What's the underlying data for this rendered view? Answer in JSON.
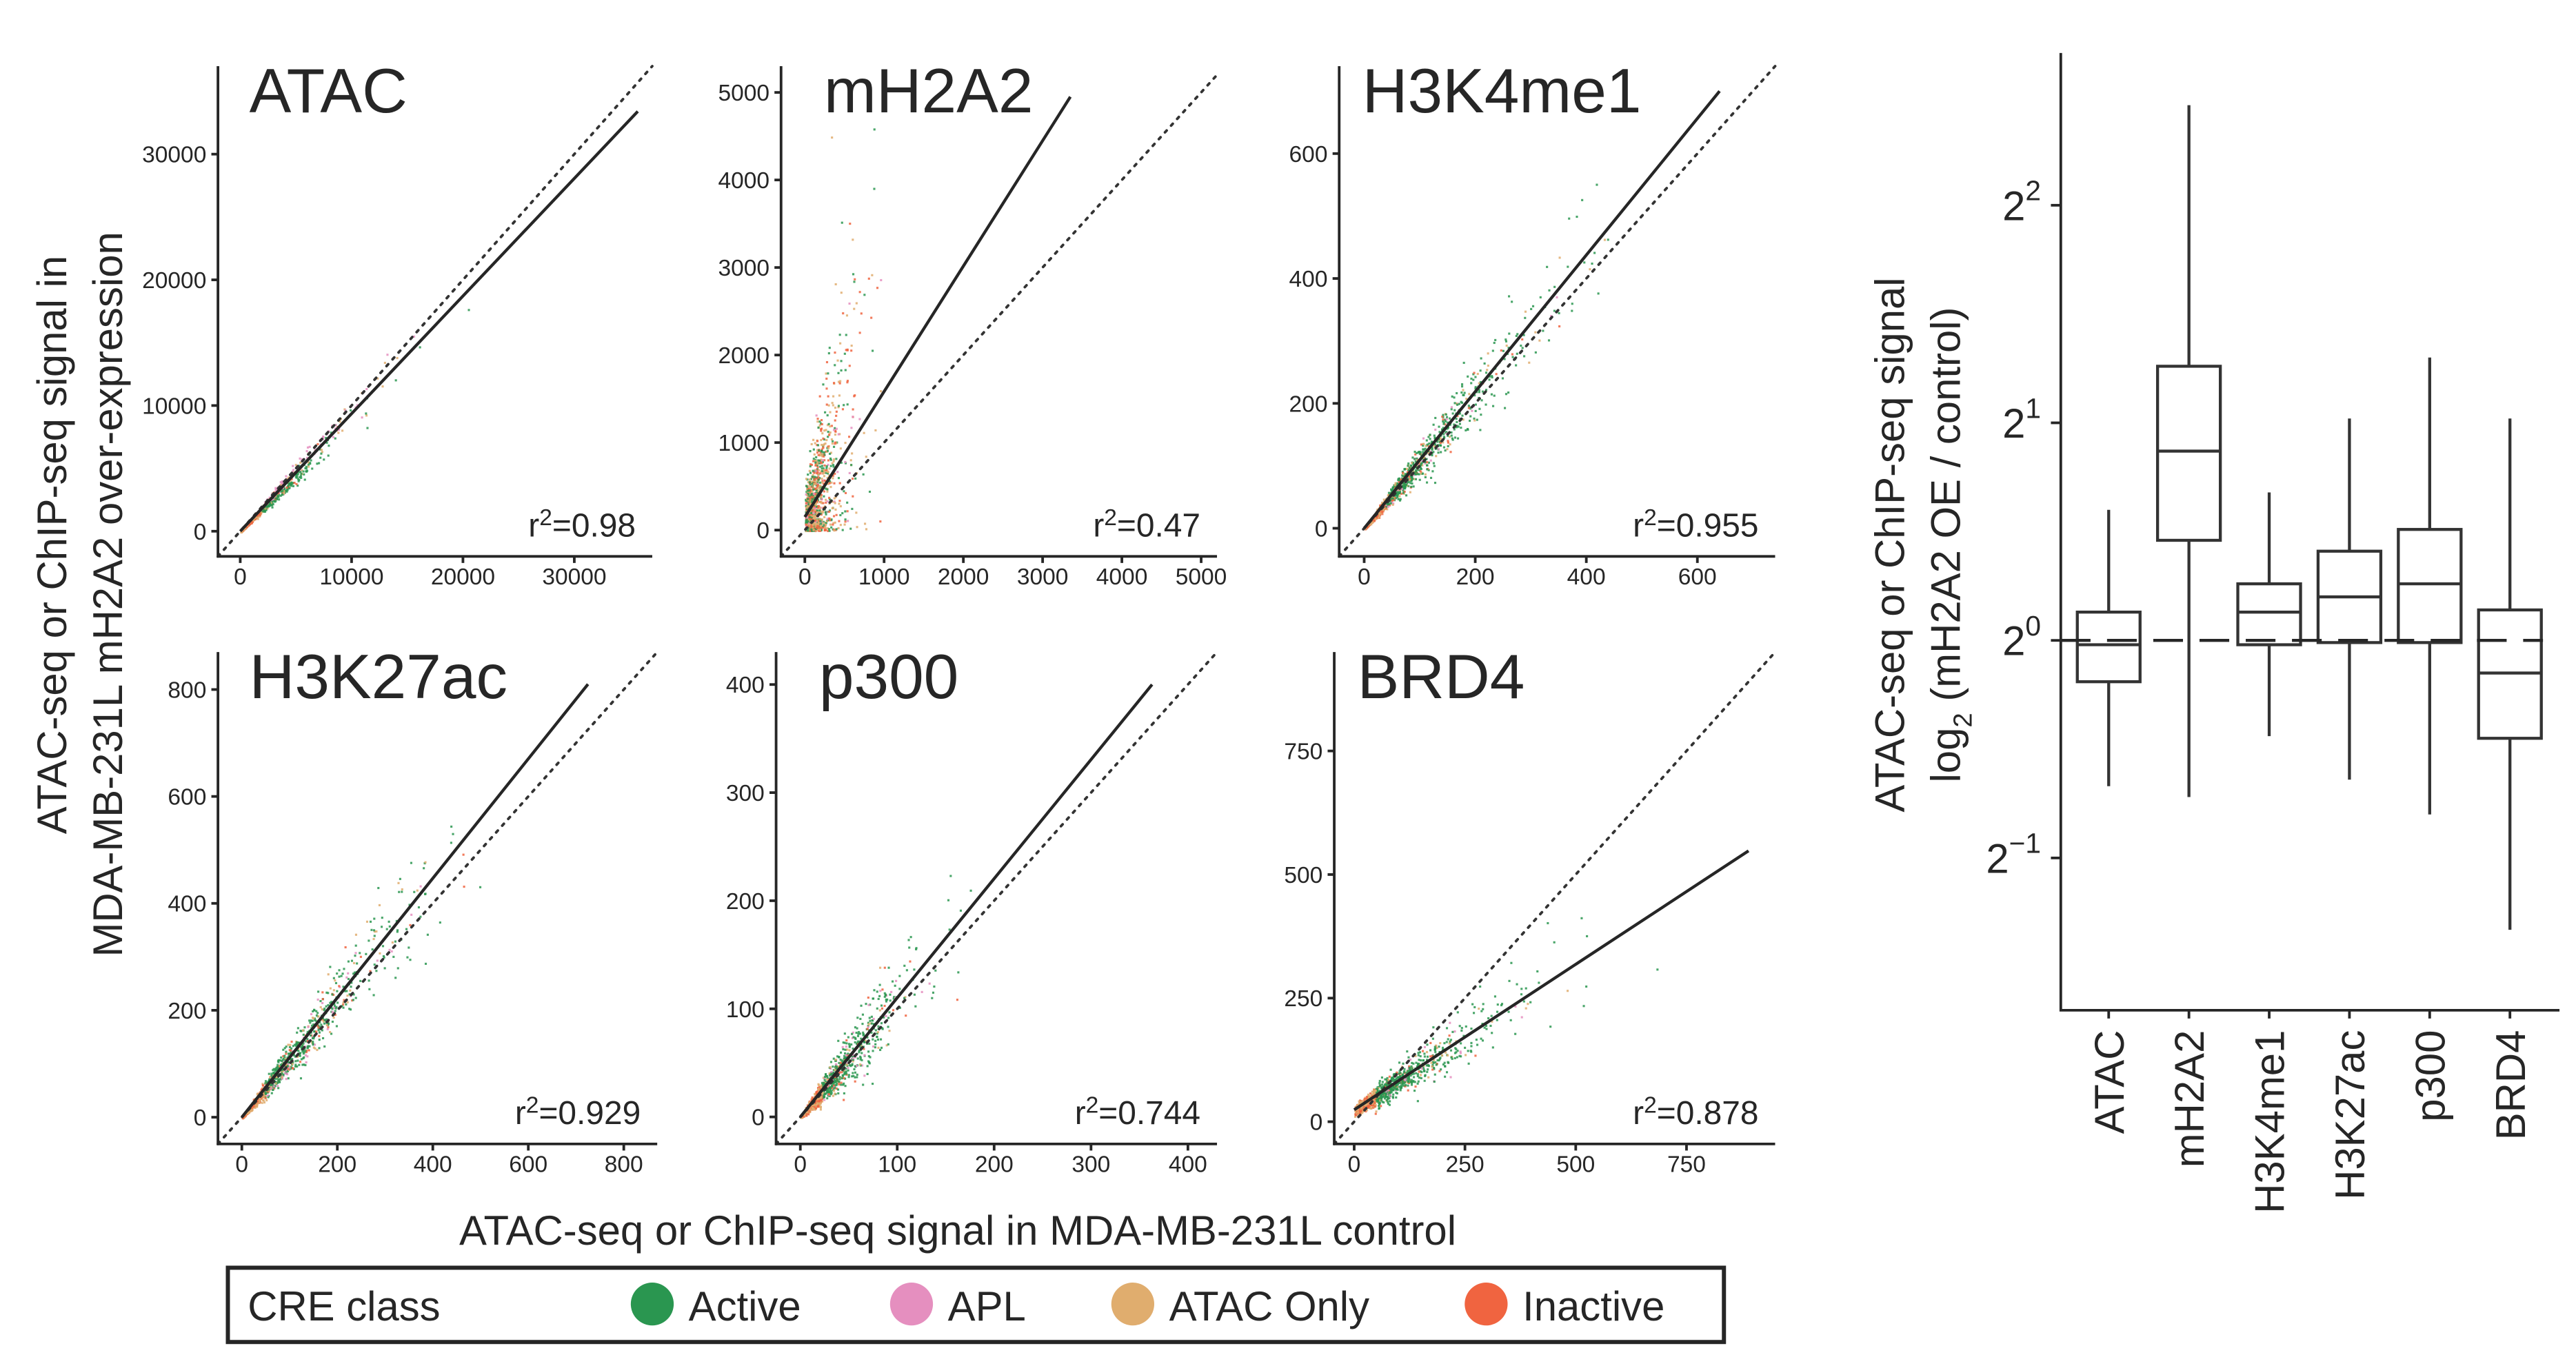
{
  "figure": {
    "scatter_ylabel_line1": "ATAC-seq or ChIP-seq signal in",
    "scatter_ylabel_line2": "MDA-MB-231L mH2A2 over-expression",
    "scatter_xlabel": "ATAC-seq or ChIP-seq signal in MDA-MB-231L control"
  },
  "legend": {
    "title": "CRE class",
    "items": [
      {
        "label": "Active",
        "color": "#2a9650"
      },
      {
        "label": "APL",
        "color": "#e58fbf"
      },
      {
        "label": "ATAC Only",
        "color": "#e0ad6e"
      },
      {
        "label": "Inactive",
        "color": "#f06440"
      }
    ]
  },
  "chart_data": [
    {
      "type": "scatter",
      "title": "ATAC",
      "r2_label": "r",
      "r2_sup": "2",
      "r2_value": "=0.98",
      "xticks": [
        0,
        10000,
        20000,
        30000
      ],
      "yticks": [
        0,
        10000,
        20000,
        30000
      ],
      "xlim": [
        -2000,
        37000
      ],
      "ylim": [
        -2000,
        37000
      ],
      "fit_line": [
        [
          0,
          0
        ],
        [
          35700,
          33400
        ]
      ],
      "identity_line": true
    },
    {
      "type": "scatter",
      "title": "mH2A2",
      "r2_label": "r",
      "r2_sup": "2",
      "r2_value": "=0.47",
      "xticks": [
        0,
        1000,
        2000,
        3000,
        4000,
        5000
      ],
      "yticks": [
        0,
        1000,
        2000,
        3000,
        4000,
        5000
      ],
      "xlim": [
        -300,
        5200
      ],
      "ylim": [
        -300,
        5300
      ],
      "fit_line": [
        [
          0,
          150
        ],
        [
          3350,
          4950
        ]
      ],
      "identity_line": true
    },
    {
      "type": "scatter",
      "title": "H3K4me1",
      "r2_label": "r",
      "r2_sup": "2",
      "r2_value": "=0.955",
      "xticks": [
        0,
        200,
        400,
        600
      ],
      "yticks": [
        0,
        200,
        400,
        600
      ],
      "xlim": [
        -45,
        740
      ],
      "ylim": [
        -45,
        740
      ],
      "fit_line": [
        [
          0,
          0
        ],
        [
          640,
          700
        ]
      ],
      "identity_line": true
    },
    {
      "type": "scatter",
      "title": "H3K27ac",
      "r2_label": "r",
      "r2_sup": "2",
      "r2_value": "=0.929",
      "xticks": [
        0,
        200,
        400,
        600,
        800
      ],
      "yticks": [
        0,
        200,
        400,
        600,
        800
      ],
      "xlim": [
        -50,
        870
      ],
      "ylim": [
        -50,
        870
      ],
      "fit_line": [
        [
          0,
          0
        ],
        [
          725,
          810
        ]
      ],
      "identity_line": true
    },
    {
      "type": "scatter",
      "title": "p300",
      "r2_label": "r",
      "r2_sup": "2",
      "r2_value": "=0.744",
      "xticks": [
        0,
        100,
        200,
        300,
        400
      ],
      "yticks": [
        0,
        100,
        200,
        300,
        400
      ],
      "xlim": [
        -25,
        430
      ],
      "ylim": [
        -25,
        430
      ],
      "fit_line": [
        [
          0,
          0
        ],
        [
          363,
          400
        ]
      ],
      "identity_line": true
    },
    {
      "type": "scatter",
      "title": "BRD4",
      "r2_label": "r",
      "r2_sup": "2",
      "r2_value": "=0.878",
      "xticks": [
        0,
        250,
        500,
        750
      ],
      "yticks": [
        0,
        250,
        500,
        750
      ],
      "xlim": [
        -45,
        950
      ],
      "ylim": [
        -45,
        950
      ],
      "fit_line": [
        [
          0,
          24
        ],
        [
          890,
          548
        ]
      ],
      "identity_line": true
    },
    {
      "type": "box",
      "ylabel_line1": "ATAC-seq or ChIP-seq signal",
      "ylabel_line2_pre": "log",
      "ylabel_line2_sub": "2",
      "ylabel_line2_post": " (mH2A2 OE / control)",
      "y_scale": "log2",
      "yticks": [
        {
          "base": "2",
          "exp": "2",
          "value": 2
        },
        {
          "base": "2",
          "exp": "1",
          "value": 1
        },
        {
          "base": "2",
          "exp": "0",
          "value": 0
        },
        {
          "base": "2",
          "exp": "−1",
          "value": -1
        }
      ],
      "ylim_log2": [
        -1.7,
        2.7
      ],
      "reference_line_log2": 0,
      "categories": [
        "ATAC",
        "mH2A2",
        "H3K4me1",
        "H3K27ac",
        "p300",
        "BRD4"
      ],
      "boxes_log2": [
        {
          "whisker_low": -0.67,
          "q1": -0.19,
          "median": -0.02,
          "q3": 0.13,
          "whisker_high": 0.6
        },
        {
          "whisker_low": -0.72,
          "q1": 0.46,
          "median": 0.87,
          "q3": 1.26,
          "whisker_high": 2.46
        },
        {
          "whisker_low": -0.44,
          "q1": -0.02,
          "median": 0.13,
          "q3": 0.26,
          "whisker_high": 0.68
        },
        {
          "whisker_low": -0.64,
          "q1": -0.01,
          "median": 0.2,
          "q3": 0.41,
          "whisker_high": 1.02
        },
        {
          "whisker_low": -0.8,
          "q1": -0.01,
          "median": 0.26,
          "q3": 0.51,
          "whisker_high": 1.3
        },
        {
          "whisker_low": -1.33,
          "q1": -0.45,
          "median": -0.15,
          "q3": 0.14,
          "whisker_high": 1.02
        }
      ]
    }
  ]
}
